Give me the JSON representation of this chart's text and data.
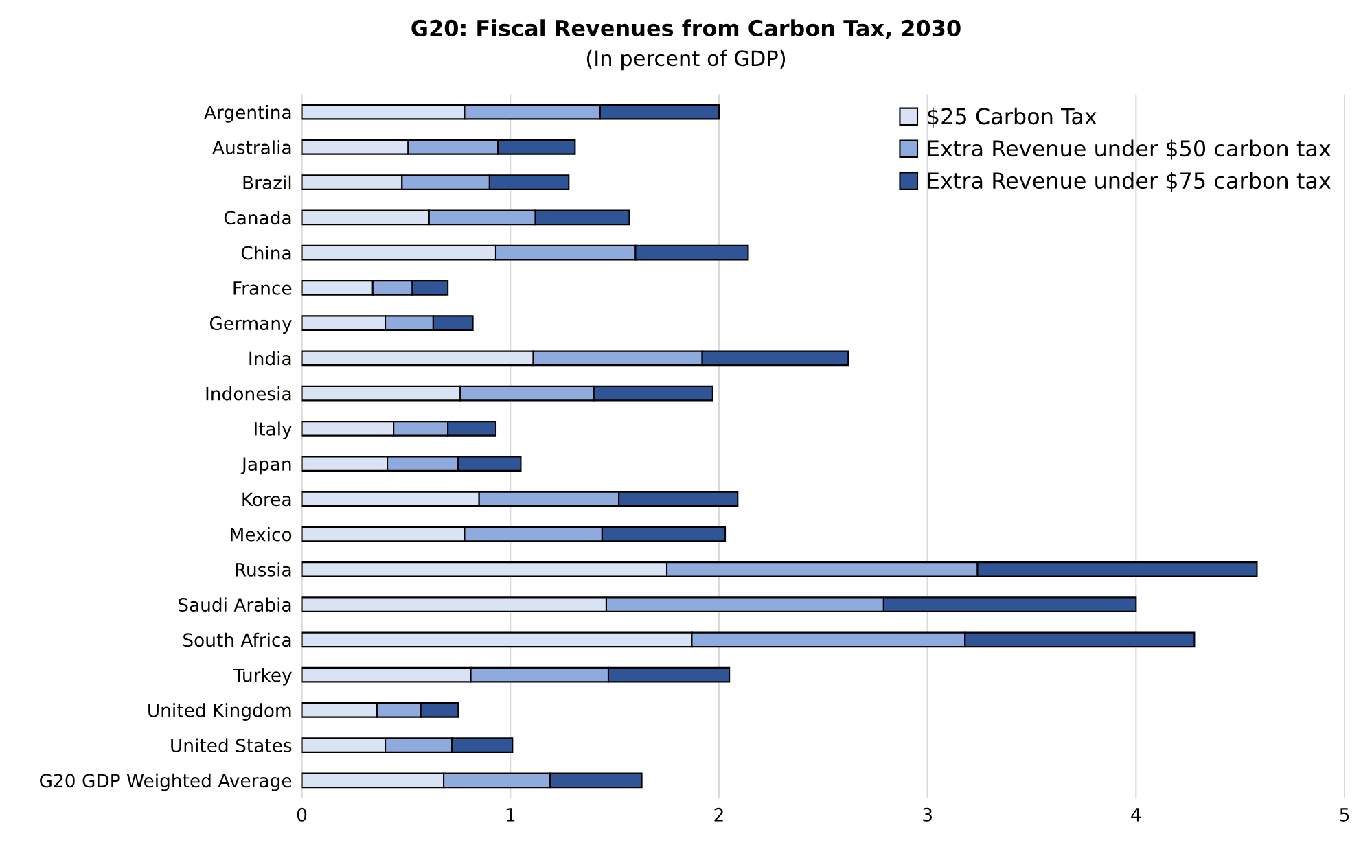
{
  "chart_data": {
    "type": "bar",
    "orientation": "horizontal",
    "stacked": true,
    "title": "G20: Fiscal Revenues from Carbon Tax, 2030",
    "subtitle": "(In percent of GDP)",
    "categories": [
      "Argentina",
      "Australia",
      "Brazil",
      "Canada",
      "China",
      "France",
      "Germany",
      "India",
      "Indonesia",
      "Italy",
      "Japan",
      "Korea",
      "Mexico",
      "Russia",
      "Saudi Arabia",
      "South Africa",
      "Turkey",
      "United Kingdom",
      "United States",
      "G20 GDP Weighted Average"
    ],
    "series": [
      {
        "name": "$25 Carbon Tax",
        "color": "#dae3f3",
        "values": [
          0.78,
          0.51,
          0.48,
          0.61,
          0.93,
          0.34,
          0.4,
          1.11,
          0.76,
          0.44,
          0.41,
          0.85,
          0.78,
          1.75,
          1.46,
          1.87,
          0.81,
          0.36,
          0.4,
          0.68
        ]
      },
      {
        "name": "Extra Revenue under $50 carbon tax",
        "color": "#8faadc",
        "values": [
          0.65,
          0.43,
          0.42,
          0.51,
          0.67,
          0.19,
          0.23,
          0.81,
          0.64,
          0.26,
          0.34,
          0.67,
          0.66,
          1.49,
          1.33,
          1.31,
          0.66,
          0.21,
          0.32,
          0.51
        ]
      },
      {
        "name": "Extra Revenue under $75 carbon tax",
        "color": "#2f5597",
        "values": [
          0.57,
          0.37,
          0.38,
          0.45,
          0.54,
          0.17,
          0.19,
          0.7,
          0.57,
          0.23,
          0.3,
          0.57,
          0.59,
          1.34,
          1.21,
          1.1,
          0.58,
          0.18,
          0.29,
          0.44
        ]
      }
    ],
    "xlim": [
      0,
      5
    ],
    "xticks": [
      0,
      1,
      2,
      3,
      4,
      5
    ],
    "grid": "x",
    "legend": "top right"
  }
}
